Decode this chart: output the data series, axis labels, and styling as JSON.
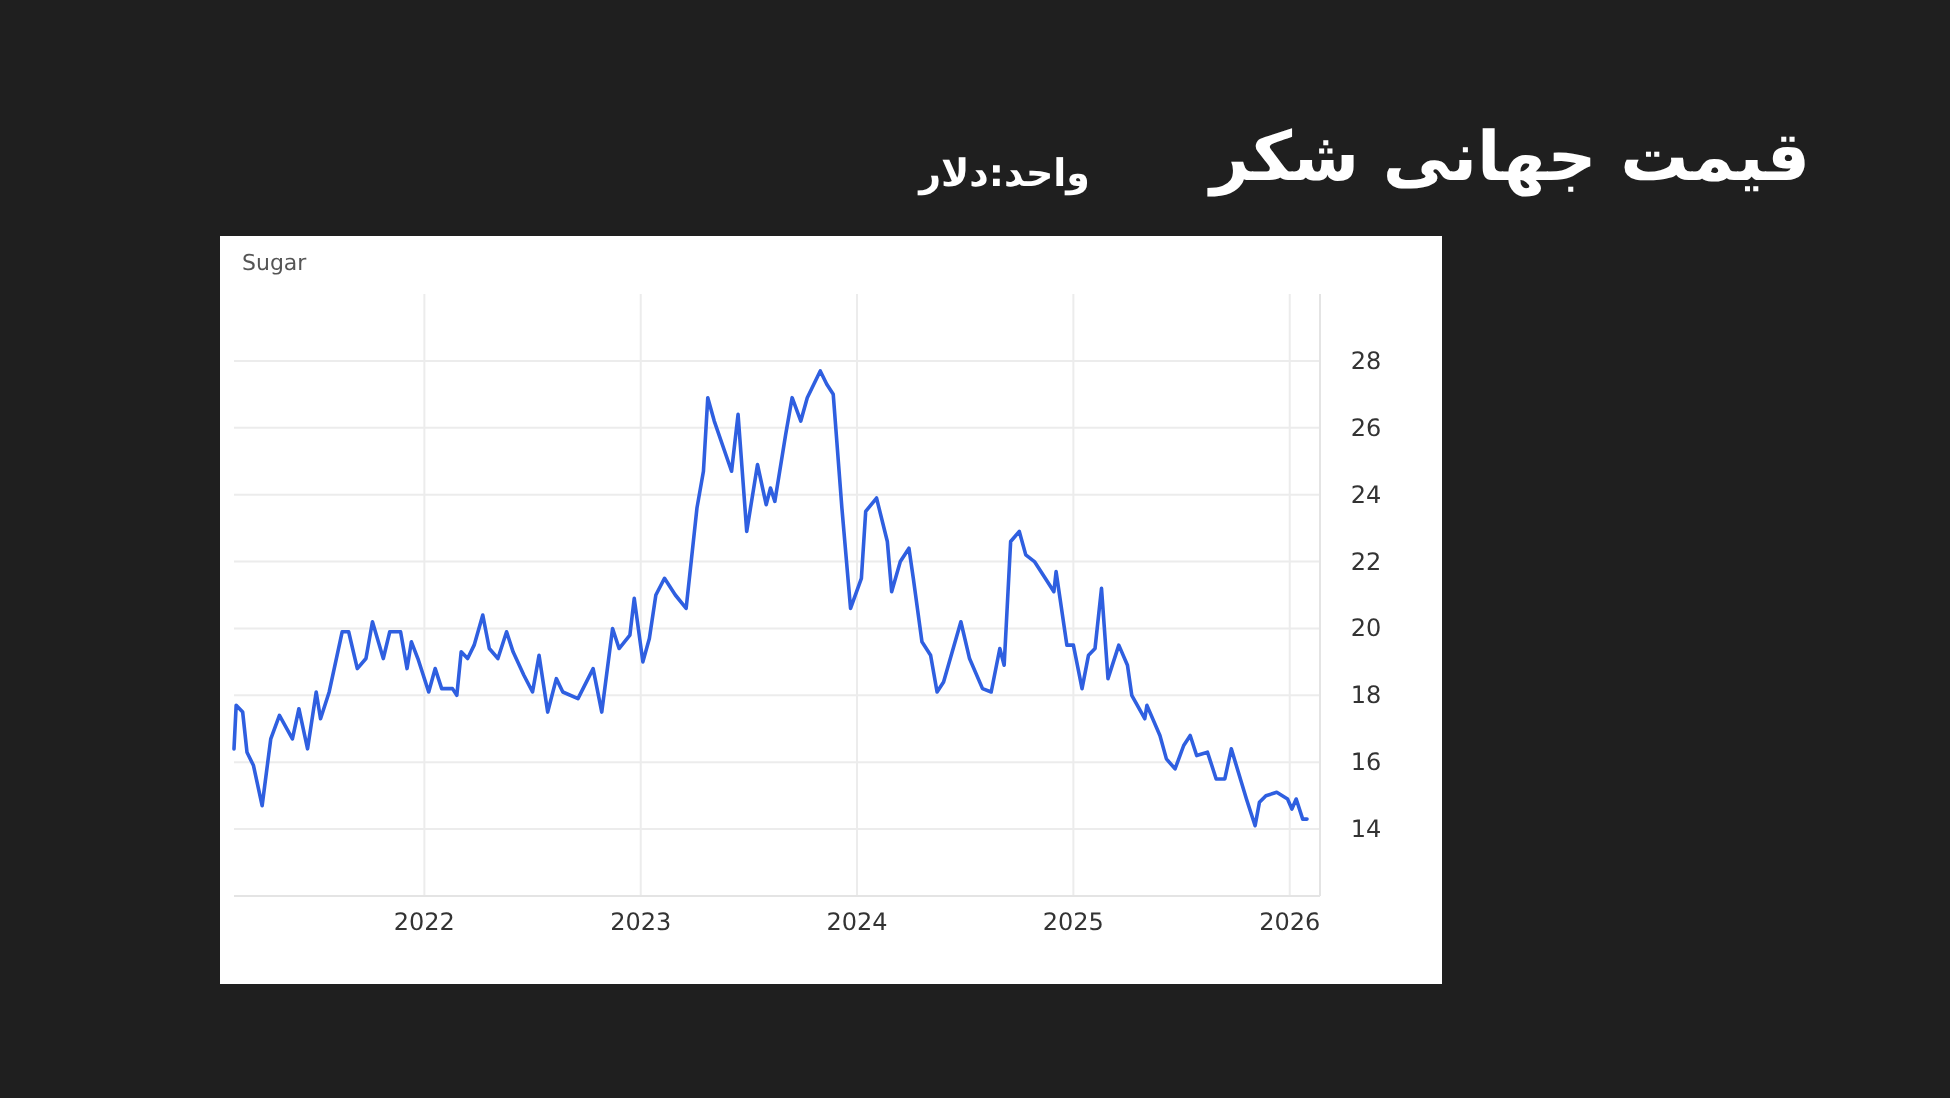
{
  "chart_data": {
    "type": "line",
    "title": "قیمت جهانی شکر",
    "subtitle": "واحد:دلار",
    "annotations": [
      "Sugar"
    ],
    "x": [
      2021.12,
      2021.13,
      2021.16,
      2021.18,
      2021.21,
      2021.25,
      2021.29,
      2021.33,
      2021.39,
      2021.42,
      2021.46,
      2021.5,
      2021.52,
      2021.56,
      2021.62,
      2021.65,
      2021.69,
      2021.73,
      2021.76,
      2021.81,
      2021.84,
      2021.89,
      2021.92,
      2021.94,
      2021.97,
      2022.02,
      2022.05,
      2022.08,
      2022.13,
      2022.15,
      2022.17,
      2022.2,
      2022.23,
      2022.27,
      2022.3,
      2022.34,
      2022.38,
      2022.41,
      2022.46,
      2022.5,
      2022.53,
      2022.57,
      2022.61,
      2022.64,
      2022.71,
      2022.78,
      2022.82,
      2022.87,
      2022.9,
      2022.95,
      2022.97,
      2023.01,
      2023.04,
      2023.07,
      2023.11,
      2023.16,
      2023.21,
      2023.26,
      2023.29,
      2023.31,
      2023.34,
      2023.42,
      2023.45,
      2023.49,
      2023.54,
      2023.58,
      2023.6,
      2023.62,
      2023.67,
      2023.7,
      2023.74,
      2023.77,
      2023.83,
      2023.86,
      2023.89,
      2023.93,
      2023.97,
      2024.02,
      2024.04,
      2024.09,
      2024.14,
      2024.16,
      2024.2,
      2024.24,
      2024.26,
      2024.3,
      2024.34,
      2024.37,
      2024.4,
      2024.44,
      2024.48,
      2024.52,
      2024.58,
      2024.62,
      2024.66,
      2024.68,
      2024.71,
      2024.75,
      2024.78,
      2024.82,
      2024.87,
      2024.91,
      2024.92,
      2024.97,
      2025.0,
      2025.04,
      2025.07,
      2025.1,
      2025.13,
      2025.16,
      2025.21,
      2025.25,
      2025.27,
      2025.33,
      2025.34,
      2025.4,
      2025.43,
      2025.47,
      2025.51,
      2025.54,
      2025.57,
      2025.62,
      2025.66,
      2025.7,
      2025.73,
      2025.8,
      2025.84,
      2025.86,
      2025.89,
      2025.94,
      2025.99,
      2026.01,
      2026.03,
      2026.06,
      2026.08
    ],
    "values": [
      16.4,
      17.7,
      17.5,
      16.3,
      15.9,
      14.7,
      16.7,
      17.4,
      16.7,
      17.6,
      16.4,
      18.1,
      17.3,
      18.1,
      19.9,
      19.9,
      18.8,
      19.1,
      20.2,
      19.1,
      19.9,
      19.9,
      18.8,
      19.6,
      19.1,
      18.1,
      18.8,
      18.2,
      18.2,
      18.0,
      19.3,
      19.1,
      19.5,
      20.4,
      19.4,
      19.1,
      19.9,
      19.3,
      18.6,
      18.1,
      19.2,
      17.5,
      18.5,
      18.1,
      17.9,
      18.8,
      17.5,
      20.0,
      19.4,
      19.8,
      20.9,
      19.0,
      19.7,
      21.0,
      21.5,
      21.0,
      20.6,
      23.6,
      24.7,
      26.9,
      26.2,
      24.7,
      26.4,
      22.9,
      24.9,
      23.7,
      24.2,
      23.8,
      25.8,
      26.9,
      26.2,
      26.9,
      27.7,
      27.3,
      27.0,
      23.6,
      20.6,
      21.5,
      23.5,
      23.9,
      22.6,
      21.1,
      22.0,
      22.4,
      21.5,
      19.6,
      19.2,
      18.1,
      18.4,
      19.3,
      20.2,
      19.1,
      18.2,
      18.1,
      19.4,
      18.9,
      22.6,
      22.9,
      22.2,
      22.0,
      21.5,
      21.1,
      21.7,
      19.5,
      19.5,
      18.2,
      19.2,
      19.4,
      21.2,
      18.5,
      19.5,
      18.9,
      18.0,
      17.3,
      17.7,
      16.8,
      16.1,
      15.8,
      16.5,
      16.8,
      16.2,
      16.3,
      15.5,
      15.5,
      16.4,
      14.9,
      14.1,
      14.8,
      15.0,
      15.1,
      14.9,
      14.6,
      14.9,
      14.3,
      14.3
    ],
    "color": "#2f5fe0",
    "xlim": [
      2021.12,
      2026.14
    ],
    "ylim": [
      12,
      30
    ],
    "xticks": [
      2022,
      2023,
      2024,
      2025,
      2026
    ],
    "yticks": [
      14,
      16,
      18,
      20,
      22,
      24,
      26,
      28
    ],
    "grid": true
  }
}
